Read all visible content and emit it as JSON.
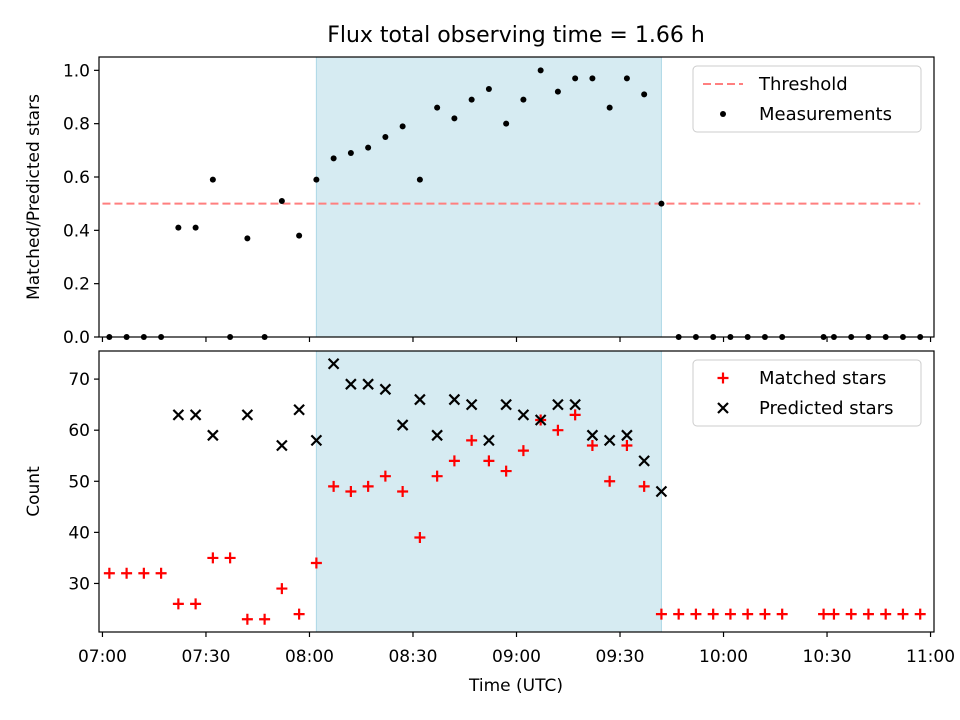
{
  "colors": {
    "threshold": "#ff7f7f",
    "measurement": "#000000",
    "matched": "#ff0000",
    "predicted": "#000000",
    "highlight": "#add8e6"
  },
  "chart_data": {
    "title": "Flux total observing time = 1.66 h",
    "xlabel": "Time (UTC)",
    "x_ticks": [
      "07:00",
      "07:30",
      "08:00",
      "08:30",
      "09:00",
      "09:30",
      "10:00",
      "10:30",
      "11:00"
    ],
    "xlim": [
      "06:59",
      "11:01"
    ],
    "highlight_span": [
      "08:02",
      "09:42"
    ],
    "panels": [
      {
        "type": "scatter",
        "ylabel": "Matched/Predicted stars",
        "ylim": [
          0,
          1.05
        ],
        "y_ticks": [
          "0.0",
          "0.2",
          "0.4",
          "0.6",
          "0.8",
          "1.0"
        ],
        "threshold": {
          "name": "Threshold",
          "value": 0.5,
          "x_range": [
            "07:00",
            "10:57"
          ],
          "style": "dashed"
        },
        "series": [
          {
            "name": "Measurements",
            "marker": "dot",
            "points": [
              [
                "07:02",
                0
              ],
              [
                "07:07",
                0
              ],
              [
                "07:12",
                0
              ],
              [
                "07:17",
                0
              ],
              [
                "07:22",
                0.41
              ],
              [
                "07:27",
                0.41
              ],
              [
                "07:32",
                0.59
              ],
              [
                "07:37",
                0
              ],
              [
                "07:42",
                0.37
              ],
              [
                "07:47",
                0
              ],
              [
                "07:52",
                0.51
              ],
              [
                "07:57",
                0.38
              ],
              [
                "08:02",
                0.59
              ],
              [
                "08:07",
                0.67
              ],
              [
                "08:12",
                0.69
              ],
              [
                "08:17",
                0.71
              ],
              [
                "08:22",
                0.75
              ],
              [
                "08:27",
                0.79
              ],
              [
                "08:32",
                0.59
              ],
              [
                "08:37",
                0.86
              ],
              [
                "08:42",
                0.82
              ],
              [
                "08:47",
                0.89
              ],
              [
                "08:52",
                0.93
              ],
              [
                "08:57",
                0.8
              ],
              [
                "09:02",
                0.89
              ],
              [
                "09:07",
                1.0
              ],
              [
                "09:12",
                0.92
              ],
              [
                "09:17",
                0.97
              ],
              [
                "09:22",
                0.97
              ],
              [
                "09:27",
                0.86
              ],
              [
                "09:32",
                0.97
              ],
              [
                "09:37",
                0.91
              ],
              [
                "09:42",
                0.5
              ],
              [
                "09:47",
                0
              ],
              [
                "09:52",
                0
              ],
              [
                "09:57",
                0
              ],
              [
                "10:02",
                0
              ],
              [
                "10:07",
                0
              ],
              [
                "10:12",
                0
              ],
              [
                "10:17",
                0
              ],
              [
                "10:29",
                0
              ],
              [
                "10:32",
                0
              ],
              [
                "10:37",
                0
              ],
              [
                "10:42",
                0
              ],
              [
                "10:47",
                0
              ],
              [
                "10:52",
                0
              ],
              [
                "10:57",
                0
              ]
            ]
          }
        ],
        "legend": {
          "placement": "upper right",
          "entries": [
            "Threshold",
            "Measurements"
          ]
        }
      },
      {
        "type": "scatter",
        "ylabel": "Count",
        "ylim": [
          20.5,
          75.5
        ],
        "y_ticks": [
          "30",
          "40",
          "50",
          "60",
          "70"
        ],
        "series": [
          {
            "name": "Matched stars",
            "marker": "plus",
            "points": [
              [
                "07:02",
                32
              ],
              [
                "07:07",
                32
              ],
              [
                "07:12",
                32
              ],
              [
                "07:17",
                32
              ],
              [
                "07:22",
                26
              ],
              [
                "07:27",
                26
              ],
              [
                "07:32",
                35
              ],
              [
                "07:37",
                35
              ],
              [
                "07:42",
                23
              ],
              [
                "07:47",
                23
              ],
              [
                "07:52",
                29
              ],
              [
                "07:57",
                24
              ],
              [
                "08:02",
                34
              ],
              [
                "08:07",
                49
              ],
              [
                "08:12",
                48
              ],
              [
                "08:17",
                49
              ],
              [
                "08:22",
                51
              ],
              [
                "08:27",
                48
              ],
              [
                "08:32",
                39
              ],
              [
                "08:37",
                51
              ],
              [
                "08:42",
                54
              ],
              [
                "08:47",
                58
              ],
              [
                "08:52",
                54
              ],
              [
                "08:57",
                52
              ],
              [
                "09:02",
                56
              ],
              [
                "09:07",
                62
              ],
              [
                "09:12",
                60
              ],
              [
                "09:17",
                63
              ],
              [
                "09:22",
                57
              ],
              [
                "09:27",
                50
              ],
              [
                "09:32",
                57
              ],
              [
                "09:37",
                49
              ],
              [
                "09:42",
                24
              ],
              [
                "09:47",
                24
              ],
              [
                "09:52",
                24
              ],
              [
                "09:57",
                24
              ],
              [
                "10:02",
                24
              ],
              [
                "10:07",
                24
              ],
              [
                "10:12",
                24
              ],
              [
                "10:17",
                24
              ],
              [
                "10:29",
                24
              ],
              [
                "10:32",
                24
              ],
              [
                "10:37",
                24
              ],
              [
                "10:42",
                24
              ],
              [
                "10:47",
                24
              ],
              [
                "10:52",
                24
              ],
              [
                "10:57",
                24
              ]
            ]
          },
          {
            "name": "Predicted stars",
            "marker": "x",
            "points": [
              [
                "07:22",
                63
              ],
              [
                "07:27",
                63
              ],
              [
                "07:32",
                59
              ],
              [
                "07:42",
                63
              ],
              [
                "07:52",
                57
              ],
              [
                "07:57",
                64
              ],
              [
                "08:02",
                58
              ],
              [
                "08:07",
                73
              ],
              [
                "08:12",
                69
              ],
              [
                "08:17",
                69
              ],
              [
                "08:22",
                68
              ],
              [
                "08:27",
                61
              ],
              [
                "08:32",
                66
              ],
              [
                "08:37",
                59
              ],
              [
                "08:42",
                66
              ],
              [
                "08:47",
                65
              ],
              [
                "08:52",
                58
              ],
              [
                "08:57",
                65
              ],
              [
                "09:02",
                63
              ],
              [
                "09:07",
                62
              ],
              [
                "09:12",
                65
              ],
              [
                "09:17",
                65
              ],
              [
                "09:22",
                59
              ],
              [
                "09:27",
                58
              ],
              [
                "09:32",
                59
              ],
              [
                "09:37",
                54
              ],
              [
                "09:42",
                48
              ]
            ]
          }
        ],
        "legend": {
          "placement": "upper right",
          "entries": [
            "Matched stars",
            "Predicted stars"
          ]
        }
      }
    ]
  }
}
